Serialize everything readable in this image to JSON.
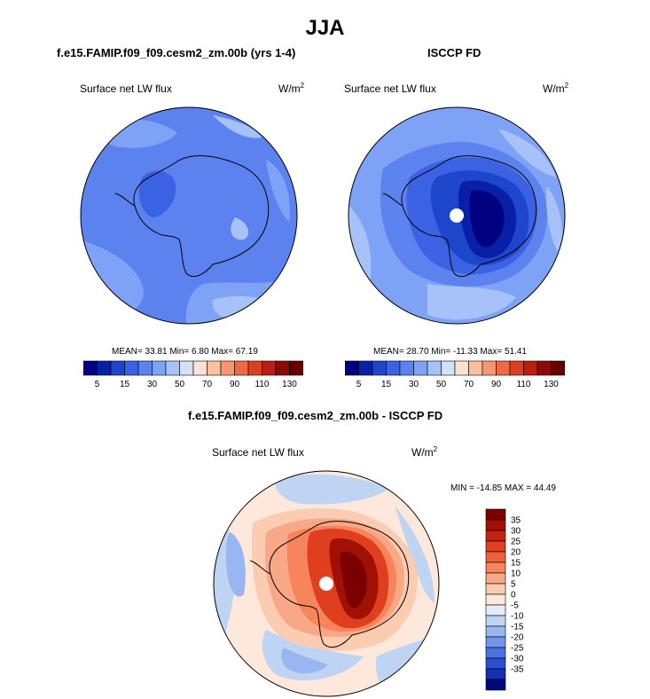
{
  "figure": {
    "title": "JJA",
    "variable": "Surface net LW flux",
    "units_base": "W/m",
    "units_exp": "2"
  },
  "panels": {
    "model": {
      "title": "f.e15.FAMIP.f09_f09.cesm2_zm.00b (yrs 1-4)",
      "stats": "MEAN=  33.81  Min=   6.80  Max=  67.19"
    },
    "obs": {
      "title": "ISCCP FD",
      "stats": "MEAN=  28.70  Min= -11.33  Max=  51.41"
    },
    "diff": {
      "title": "f.e15.FAMIP.f09_f09.cesm2_zm.00b - ISCCP FD",
      "stats": "MIN = -14.85 MAX =  44.49"
    }
  },
  "chart_data": [
    {
      "type": "heatmap",
      "title": "f.e15.FAMIP.f09_f09.cesm2_zm.00b (yrs 1-4)",
      "subtitle": "Surface net LW flux",
      "units": "W/m2",
      "projection": "south polar stereographic",
      "mean": 33.81,
      "min": 6.8,
      "max": 67.19,
      "levels": [
        5,
        10,
        15,
        20,
        30,
        40,
        50,
        60,
        70,
        80,
        90,
        100,
        110,
        120,
        130
      ],
      "level_tick_labels": [
        "5",
        "15",
        "30",
        "50",
        "70",
        "90",
        "110",
        "130"
      ]
    },
    {
      "type": "heatmap",
      "title": "ISCCP FD",
      "subtitle": "Surface net LW flux",
      "units": "W/m2",
      "projection": "south polar stereographic",
      "mean": 28.7,
      "min": -11.33,
      "max": 51.41,
      "levels": [
        5,
        10,
        15,
        20,
        30,
        40,
        50,
        60,
        70,
        80,
        90,
        100,
        110,
        120,
        130
      ],
      "level_tick_labels": [
        "5",
        "15",
        "30",
        "50",
        "70",
        "90",
        "110",
        "130"
      ]
    },
    {
      "type": "heatmap",
      "title": "f.e15.FAMIP.f09_f09.cesm2_zm.00b - ISCCP FD",
      "subtitle": "Surface net LW flux",
      "units": "W/m2",
      "projection": "south polar stereographic",
      "min": -14.85,
      "max": 44.49,
      "levels": [
        -35,
        -30,
        -25,
        -20,
        -15,
        -10,
        -5,
        0,
        5,
        10,
        15,
        20,
        25,
        30,
        35
      ],
      "level_tick_labels": [
        "35",
        "30",
        "25",
        "20",
        "15",
        "10",
        "5",
        "0",
        "-5",
        "-10",
        "-15",
        "-20",
        "-25",
        "-30",
        "-35"
      ]
    }
  ],
  "colors": {
    "absolute_scale": [
      "#000080",
      "#0a1fa8",
      "#1e46cc",
      "#3a62e3",
      "#5b82ef",
      "#7ea2f5",
      "#a7c2f8",
      "#d2e0f8",
      "#fbe2d4",
      "#fbc0a2",
      "#f79670",
      "#ee6a44",
      "#dd3f22",
      "#b91e10",
      "#8c0a06",
      "#660000"
    ],
    "diff_scale_top_to_bottom": [
      "#7d0000",
      "#a01005",
      "#c2230e",
      "#df3e1f",
      "#f05f38",
      "#f7845a",
      "#f9a887",
      "#fbcbb2",
      "#fde8db",
      "#e4ecf6",
      "#bfd4f3",
      "#98b6ef",
      "#7195ea",
      "#4b72e0",
      "#2b4fd0",
      "#1530b0",
      "#00087e"
    ]
  }
}
